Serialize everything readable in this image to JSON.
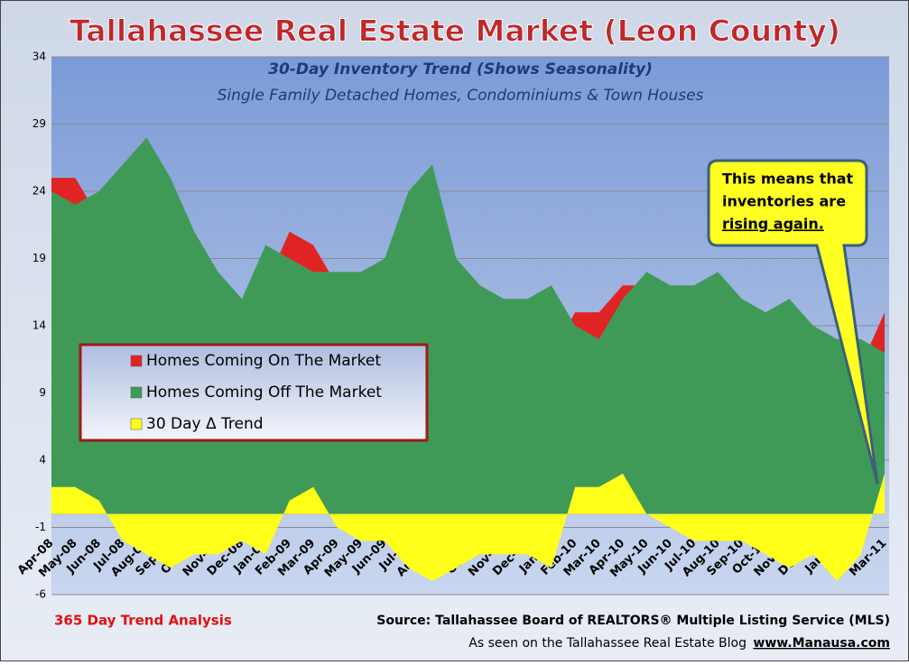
{
  "chart_data": {
    "type": "area",
    "title": "Tallahassee Real Estate Market (Leon County)",
    "subtitle": "30-Day Inventory Trend (Shows Seasonality)",
    "subtitle2": "Single Family Detached Homes, Condominiums & Town Houses",
    "categories": [
      "Apr-08",
      "May-08",
      "Jun-08",
      "Jul-08",
      "Aug-08",
      "Sep-08",
      "Oct-08",
      "Nov-08",
      "Dec-08",
      "Jan-09",
      "Feb-09",
      "Mar-09",
      "Apr-09",
      "May-09",
      "Jun-09",
      "Jul-09",
      "Aug-09",
      "Sep-09",
      "Oct-09",
      "Nov-09",
      "Dec-09",
      "Jan-10",
      "Feb-10",
      "Mar-10",
      "Apr-10",
      "May-10",
      "Jun-10",
      "Jul-10",
      "Aug-10",
      "Sep-10",
      "Oct-10",
      "Nov-10",
      "Dec-10",
      "Jan-11",
      "Feb-11",
      "Mar-11"
    ],
    "series": [
      {
        "name": "Homes Coming On The Market",
        "color": "#e02424",
        "values": [
          25,
          25,
          22,
          24,
          26,
          22,
          19,
          16,
          15,
          17,
          21,
          20,
          17,
          17,
          18,
          20,
          23,
          17,
          15,
          14,
          13,
          12,
          15,
          15,
          17,
          17,
          15,
          15,
          15,
          14,
          13,
          13,
          12,
          11,
          11,
          15
        ]
      },
      {
        "name": "Homes Coming Off The Market",
        "color": "#3f9a58",
        "values": [
          24,
          23,
          24,
          26,
          28,
          25,
          21,
          18,
          16,
          20,
          19,
          18,
          18,
          18,
          19,
          24,
          26,
          19,
          17,
          16,
          16,
          17,
          14,
          13,
          16,
          18,
          17,
          17,
          18,
          16,
          15,
          16,
          14,
          13,
          13,
          12
        ]
      },
      {
        "name": "30 Day Δ Trend",
        "color": "#ffff1a",
        "values": [
          2,
          2,
          1,
          -2,
          -3,
          -4,
          -3,
          -3,
          -2,
          -3,
          1,
          2,
          -1,
          -2,
          -2,
          -4,
          -5,
          -4,
          -3,
          -3,
          -3,
          -4,
          2,
          2,
          3,
          0,
          -1,
          -2,
          -2,
          -2,
          -3,
          -4,
          -3,
          -5,
          -3,
          3
        ]
      }
    ],
    "ylim": [
      -6,
      34
    ],
    "yticks": [
      -6,
      -1,
      4,
      9,
      14,
      19,
      24,
      29,
      34
    ],
    "grid": true,
    "callout": [
      "This means that",
      "inventories are",
      "rising again."
    ],
    "footer_left": "365 Day Trend Analysis",
    "source": "Source: Tallahassee Board of REALTORS® Multiple Listing Service (MLS)",
    "seen_on": "As seen on the Tallahassee Real Estate Blog",
    "website": "www.Manausa.com"
  }
}
